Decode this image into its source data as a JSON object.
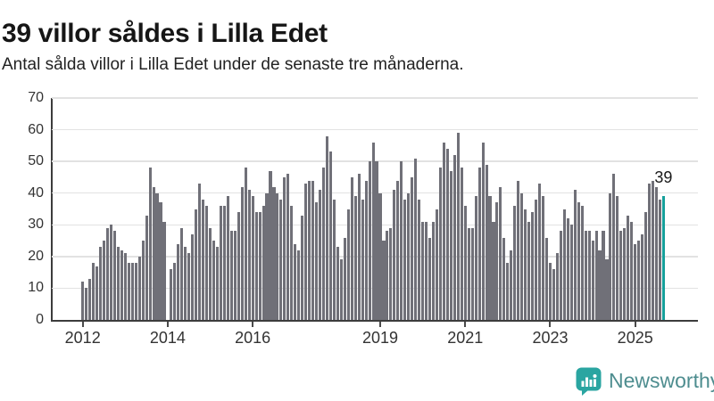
{
  "header": {
    "title": "39 villor såldes i Lilla Edet",
    "subtitle": "Antal sålda villor i Lilla Edet under de senaste tre månaderna."
  },
  "chart_data": {
    "type": "bar",
    "title": "39 villor såldes i Lilla Edet",
    "subtitle": "Antal sålda villor i Lilla Edet under de senaste tre månaderna.",
    "x_start": "2012-01",
    "x_interval": "month",
    "values": [
      12,
      10,
      13,
      18,
      17,
      23,
      25,
      29,
      30,
      28,
      23,
      22,
      21,
      18,
      18,
      18,
      20,
      25,
      33,
      48,
      42,
      40,
      37,
      31,
      0,
      16,
      18,
      24,
      29,
      23,
      21,
      27,
      35,
      43,
      38,
      36,
      29,
      25,
      23,
      36,
      36,
      39,
      28,
      28,
      34,
      42,
      48,
      41,
      39,
      34,
      34,
      36,
      40,
      47,
      42,
      40,
      38,
      45,
      46,
      36,
      24,
      22,
      33,
      43,
      44,
      44,
      37,
      41,
      48,
      58,
      53,
      38,
      23,
      19,
      26,
      35,
      45,
      39,
      46,
      38,
      44,
      50,
      56,
      50,
      40,
      25,
      28,
      29,
      41,
      44,
      50,
      38,
      40,
      45,
      51,
      38,
      31,
      31,
      26,
      31,
      35,
      48,
      56,
      54,
      47,
      52,
      59,
      48,
      36,
      29,
      29,
      39,
      48,
      56,
      49,
      39,
      31,
      37,
      42,
      26,
      18,
      22,
      36,
      44,
      40,
      35,
      31,
      34,
      38,
      43,
      39,
      26,
      18,
      16,
      21,
      28,
      35,
      32,
      30,
      41,
      37,
      36,
      28,
      28,
      25,
      28,
      22,
      28,
      19,
      40,
      46,
      39,
      28,
      29,
      33,
      31,
      24,
      25,
      27,
      34,
      43,
      44,
      42,
      38,
      39
    ],
    "yticks": [
      0,
      10,
      20,
      30,
      40,
      50,
      60,
      70
    ],
    "ylim": [
      0,
      70
    ],
    "grid": true,
    "legend": "none",
    "xticks": [
      {
        "label": "2012",
        "month_index": 0
      },
      {
        "label": "2014",
        "month_index": 24
      },
      {
        "label": "2016",
        "month_index": 48
      },
      {
        "label": "2019",
        "month_index": 84
      },
      {
        "label": "2021",
        "month_index": 108
      },
      {
        "label": "2023",
        "month_index": 132
      },
      {
        "label": "2025",
        "month_index": 156
      }
    ],
    "highlight": {
      "index": 164,
      "value": 39,
      "label": "39",
      "color": "#16a09b"
    },
    "bar_color": "#707078"
  },
  "logo": {
    "text": "Newsworthy",
    "icon": "newsworthy-chart-bubble-icon",
    "icon_color": "#2aa5a1",
    "text_color": "#4e8d8f"
  }
}
